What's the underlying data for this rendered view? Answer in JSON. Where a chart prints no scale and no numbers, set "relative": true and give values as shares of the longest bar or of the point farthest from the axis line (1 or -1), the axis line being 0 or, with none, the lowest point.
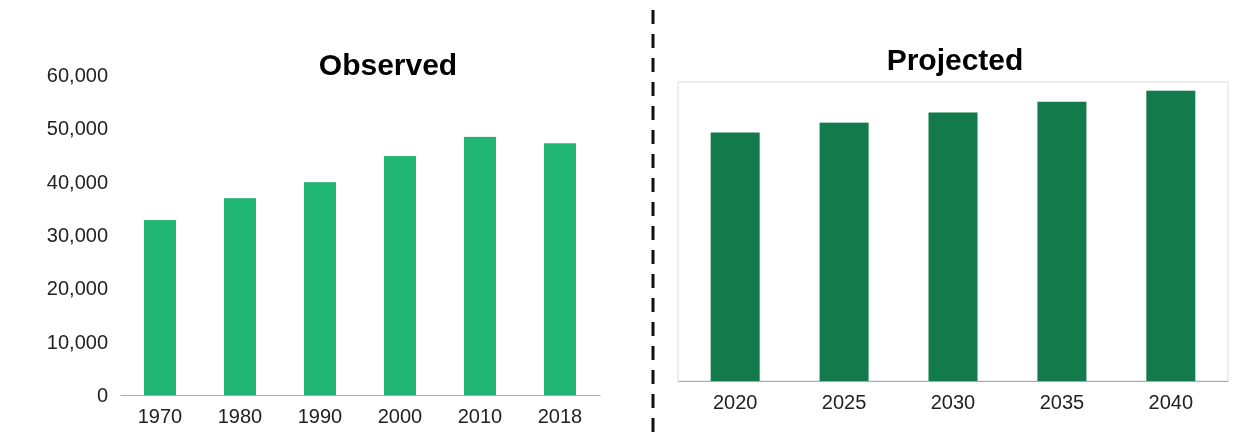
{
  "chart_data": [
    {
      "type": "bar",
      "title": "Observed",
      "categories": [
        "1970",
        "1980",
        "1990",
        "2000",
        "2010",
        "2018"
      ],
      "values": [
        32800,
        36900,
        39900,
        44800,
        48400,
        47200
      ],
      "color": "#21b573",
      "ylim": [
        0,
        60000
      ],
      "yticks": [
        {
          "value": 0,
          "label": "0"
        },
        {
          "value": 10000,
          "label": "10,000"
        },
        {
          "value": 20000,
          "label": "20,000"
        },
        {
          "value": 30000,
          "label": "30,000"
        },
        {
          "value": 40000,
          "label": "40,000"
        },
        {
          "value": 50000,
          "label": "50,000"
        },
        {
          "value": 60000,
          "label": "60,000"
        }
      ],
      "grid": false
    },
    {
      "type": "bar",
      "title": "Projected",
      "categories": [
        "2020",
        "2025",
        "2030",
        "2035",
        "2040"
      ],
      "values": [
        0.856,
        0.89,
        0.925,
        0.962,
        1
      ],
      "color": "#137a4c",
      "relative": true,
      "grid": false
    }
  ]
}
